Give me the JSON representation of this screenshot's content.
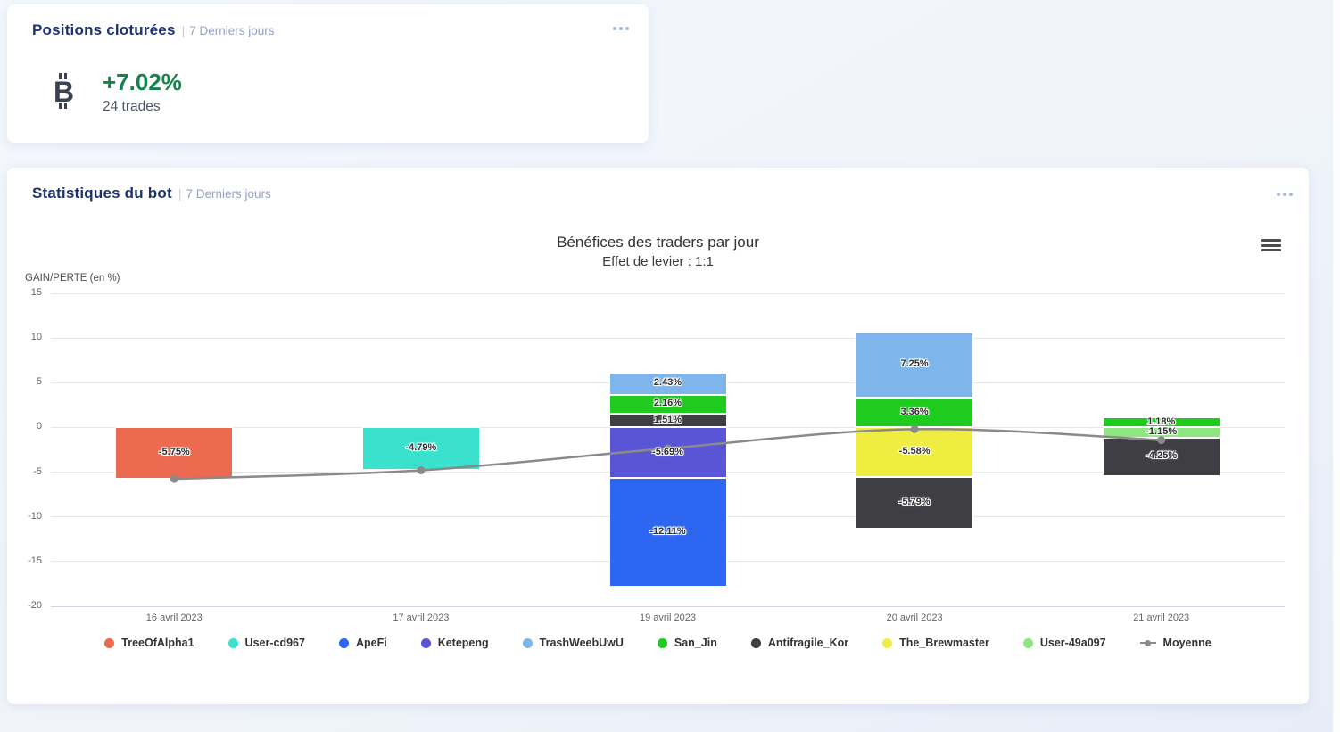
{
  "cards": {
    "positions": {
      "title": "Positions cloturées",
      "separator": "|",
      "subtitle": "7 Derniers jours",
      "currency_icon": "bitcoin-icon",
      "value": "+7.02%",
      "value_color": "#15834e",
      "trades": "24 trades",
      "menu_icon": "ellipsis-icon"
    },
    "stats": {
      "title": "Statistiques du bot",
      "separator": "|",
      "subtitle": "7 Derniers jours",
      "menu_icon": "ellipsis-icon",
      "chart_menu_icon": "hamburger-icon"
    }
  },
  "chart_data": {
    "type": "bar",
    "stacked": true,
    "title": "Bénéfices des traders par jour",
    "subtitle": "Effet de levier : 1:1",
    "ylabel": "GAIN/PERTE (en %)",
    "ylim": [
      -20,
      15
    ],
    "yticks": [
      15,
      10,
      5,
      0,
      -5,
      -10,
      -15,
      -20
    ],
    "grid": true,
    "legend_position": "bottom",
    "categories": [
      "16 avril 2023",
      "17 avril 2023",
      "19 avril 2023",
      "20 avril 2023",
      "21 avril 2023"
    ],
    "series": [
      {
        "name": "TreeOfAlpha1",
        "color": "#ec6a50",
        "values": [
          -5.75,
          null,
          null,
          null,
          null
        ]
      },
      {
        "name": "User-cd967",
        "color": "#3ae2cd",
        "values": [
          null,
          -4.79,
          null,
          null,
          null
        ]
      },
      {
        "name": "ApeFi",
        "color": "#2d66f1",
        "values": [
          null,
          null,
          -12.11,
          null,
          null
        ]
      },
      {
        "name": "Ketepeng",
        "color": "#5955d5",
        "values": [
          null,
          null,
          -5.69,
          null,
          null
        ]
      },
      {
        "name": "TrashWeebUwU",
        "color": "#7eb5ea",
        "values": [
          null,
          null,
          2.43,
          7.25,
          null
        ]
      },
      {
        "name": "San_Jin",
        "color": "#1ecb1e",
        "values": [
          null,
          null,
          2.16,
          3.36,
          1.18
        ]
      },
      {
        "name": "Antifragile_Kor",
        "color": "#3f3f43",
        "values": [
          null,
          null,
          1.51,
          -5.79,
          -4.25
        ]
      },
      {
        "name": "The_Brewmaster",
        "color": "#f0ed41",
        "values": [
          null,
          null,
          null,
          -5.58,
          null
        ]
      },
      {
        "name": "User-49a097",
        "color": "#8ee680",
        "values": [
          null,
          null,
          null,
          null,
          -1.15
        ]
      }
    ],
    "line_series": {
      "name": "Moyenne",
      "color": "#8a8a8a",
      "values": [
        -5.75,
        -4.79,
        -2.34,
        -0.19,
        -1.41
      ]
    },
    "data_label_suffix": "%"
  }
}
